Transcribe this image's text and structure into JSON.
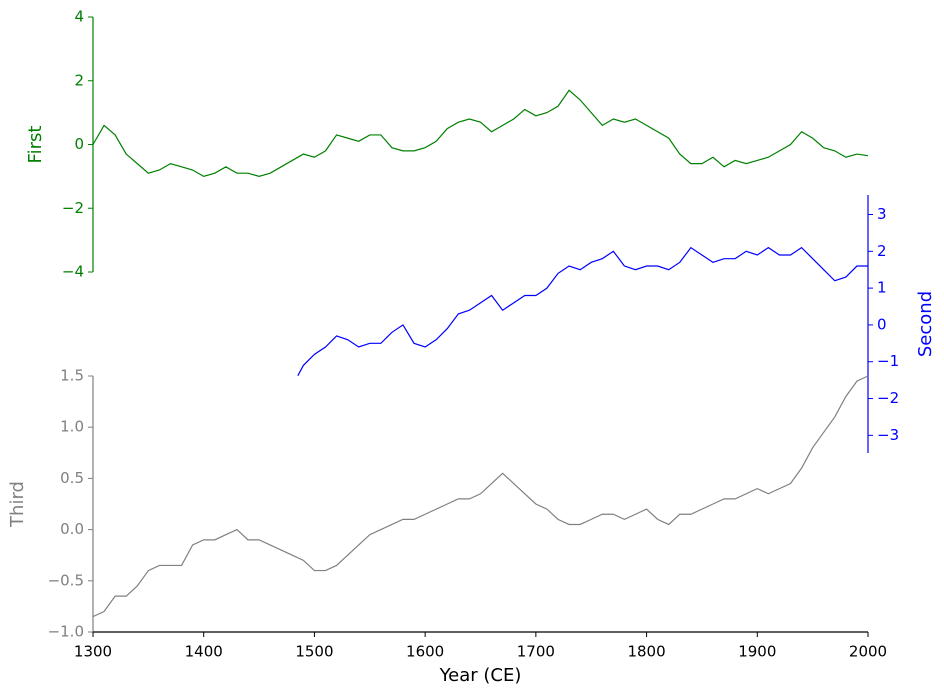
{
  "chart_data": [
    {
      "type": "line",
      "ylabel": "First",
      "color": "#008000",
      "y_axis_side": "left",
      "x": [
        1300,
        1310,
        1320,
        1330,
        1340,
        1350,
        1360,
        1370,
        1380,
        1390,
        1400,
        1410,
        1420,
        1430,
        1440,
        1450,
        1460,
        1470,
        1480,
        1490,
        1500,
        1510,
        1520,
        1530,
        1540,
        1550,
        1560,
        1570,
        1580,
        1590,
        1600,
        1610,
        1620,
        1630,
        1640,
        1650,
        1660,
        1670,
        1680,
        1690,
        1700,
        1710,
        1720,
        1730,
        1740,
        1750,
        1760,
        1770,
        1780,
        1790,
        1800,
        1810,
        1820,
        1830,
        1840,
        1850,
        1860,
        1870,
        1880,
        1890,
        1900,
        1910,
        1920,
        1930,
        1940,
        1950,
        1960,
        1970,
        1980,
        1990,
        2000
      ],
      "values": [
        0.0,
        0.6,
        0.3,
        -0.3,
        -0.6,
        -0.9,
        -0.8,
        -0.6,
        -0.7,
        -0.8,
        -1.0,
        -0.9,
        -0.7,
        -0.9,
        -0.9,
        -1.0,
        -0.9,
        -0.7,
        -0.5,
        -0.3,
        -0.4,
        -0.2,
        0.3,
        0.2,
        0.1,
        0.3,
        0.3,
        -0.1,
        -0.2,
        -0.2,
        -0.1,
        0.1,
        0.5,
        0.7,
        0.8,
        0.7,
        0.4,
        0.6,
        0.8,
        1.1,
        0.9,
        1.0,
        1.2,
        1.7,
        1.4,
        1.0,
        0.6,
        0.8,
        0.7,
        0.8,
        0.6,
        0.4,
        0.2,
        -0.3,
        -0.6,
        -0.6,
        -0.4,
        -0.7,
        -0.5,
        -0.6,
        -0.5,
        -0.4,
        -0.2,
        0.0,
        0.4,
        0.2,
        -0.1,
        -0.2,
        -0.4,
        -0.3,
        -0.35
      ],
      "xlim": [
        1300,
        2000
      ],
      "ylim": [
        -4,
        4
      ],
      "yticks": [
        {
          "value": -4,
          "label": "−4"
        },
        {
          "value": -2,
          "label": "−2"
        },
        0,
        2,
        4
      ]
    },
    {
      "type": "line",
      "ylabel": "Second",
      "color": "#0000ff",
      "y_axis_side": "right",
      "x": [
        1485,
        1490,
        1500,
        1510,
        1520,
        1530,
        1540,
        1550,
        1560,
        1570,
        1580,
        1590,
        1600,
        1610,
        1620,
        1630,
        1640,
        1650,
        1660,
        1670,
        1680,
        1690,
        1700,
        1710,
        1720,
        1730,
        1740,
        1750,
        1760,
        1770,
        1780,
        1790,
        1800,
        1810,
        1820,
        1830,
        1840,
        1850,
        1860,
        1870,
        1880,
        1890,
        1900,
        1910,
        1920,
        1930,
        1940,
        1950,
        1960,
        1970,
        1980,
        1990,
        2000
      ],
      "values": [
        -1.38,
        -1.1,
        -0.8,
        -0.6,
        -0.3,
        -0.4,
        -0.6,
        -0.5,
        -0.5,
        -0.2,
        0.0,
        -0.5,
        -0.6,
        -0.4,
        -0.1,
        0.3,
        0.4,
        0.6,
        0.8,
        0.4,
        0.6,
        0.8,
        0.8,
        1.0,
        1.4,
        1.6,
        1.5,
        1.7,
        1.8,
        2.0,
        1.6,
        1.5,
        1.6,
        1.6,
        1.5,
        1.7,
        2.1,
        1.9,
        1.7,
        1.8,
        1.8,
        2.0,
        1.9,
        2.1,
        1.9,
        1.9,
        2.1,
        1.8,
        1.5,
        1.2,
        1.3,
        1.6,
        1.6
      ],
      "xlim": [
        1300,
        2000
      ],
      "ylim": [
        -3.48,
        3.53
      ],
      "yticks": [
        {
          "value": -3,
          "label": "−3"
        },
        {
          "value": -2,
          "label": "−2"
        },
        {
          "value": -1,
          "label": "−1"
        },
        0,
        1,
        2,
        3
      ]
    },
    {
      "type": "line",
      "ylabel": "Third",
      "xlabel": "Year (CE)",
      "color": "#808080",
      "y_axis_side": "left",
      "x": [
        1300,
        1310,
        1320,
        1330,
        1340,
        1350,
        1360,
        1370,
        1380,
        1390,
        1400,
        1410,
        1420,
        1430,
        1440,
        1450,
        1460,
        1470,
        1480,
        1490,
        1500,
        1510,
        1520,
        1530,
        1540,
        1550,
        1560,
        1570,
        1580,
        1590,
        1600,
        1610,
        1620,
        1630,
        1640,
        1650,
        1660,
        1670,
        1680,
        1690,
        1700,
        1710,
        1720,
        1730,
        1740,
        1750,
        1760,
        1770,
        1780,
        1790,
        1800,
        1810,
        1820,
        1830,
        1840,
        1850,
        1860,
        1870,
        1880,
        1890,
        1900,
        1910,
        1920,
        1930,
        1940,
        1950,
        1960,
        1970,
        1980,
        1990,
        2000
      ],
      "values": [
        -0.85,
        -0.8,
        -0.65,
        -0.65,
        -0.55,
        -0.4,
        -0.35,
        -0.35,
        -0.35,
        -0.15,
        -0.1,
        -0.1,
        -0.05,
        0.0,
        -0.1,
        -0.1,
        -0.15,
        -0.2,
        -0.25,
        -0.3,
        -0.4,
        -0.4,
        -0.35,
        -0.25,
        -0.15,
        -0.05,
        0.0,
        0.05,
        0.1,
        0.1,
        0.15,
        0.2,
        0.25,
        0.3,
        0.3,
        0.35,
        0.45,
        0.55,
        0.45,
        0.35,
        0.25,
        0.2,
        0.1,
        0.05,
        0.05,
        0.1,
        0.15,
        0.15,
        0.1,
        0.15,
        0.2,
        0.1,
        0.05,
        0.15,
        0.15,
        0.2,
        0.25,
        0.3,
        0.3,
        0.35,
        0.4,
        0.35,
        0.4,
        0.45,
        0.6,
        0.8,
        0.95,
        1.1,
        1.3,
        1.45,
        1.5
      ],
      "xlim": [
        1300,
        2000
      ],
      "ylim": [
        -1,
        1.5
      ],
      "xticks": [
        1300,
        1400,
        1500,
        1600,
        1700,
        1800,
        1900,
        2000
      ],
      "yticks": [
        {
          "value": -1,
          "label": "−1.0"
        },
        {
          "value": -0.5,
          "label": "−0.5"
        },
        {
          "value": 0,
          "label": "0.0"
        },
        {
          "value": 0.5,
          "label": "0.5"
        },
        {
          "value": 1,
          "label": "1.0"
        },
        {
          "value": 1.5,
          "label": "1.5"
        }
      ]
    }
  ]
}
